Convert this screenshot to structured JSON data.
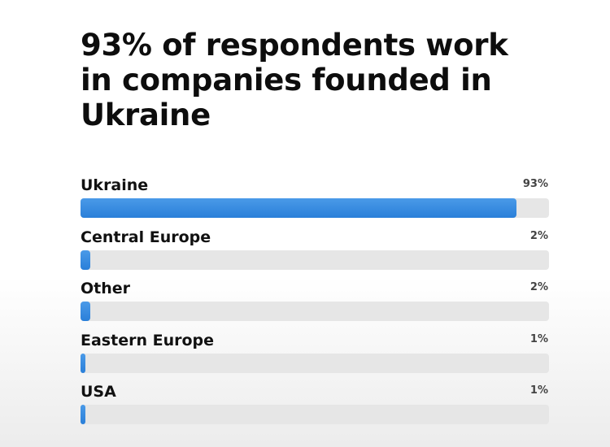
{
  "title": "93% of respondents work in companies founded in Ukraine",
  "colors": {
    "bar": "#2f86df",
    "track": "#e6e6e6",
    "text": "#111111"
  },
  "chart_data": {
    "type": "bar",
    "orientation": "horizontal",
    "title": "93% of respondents work in companies founded in Ukraine",
    "categories": [
      "Ukraine",
      "Central Europe",
      "Other",
      "Eastern Europe",
      "USA"
    ],
    "values": [
      93,
      2,
      2,
      1,
      1
    ],
    "value_labels": [
      "93%",
      "2%",
      "2%",
      "1%",
      "1%"
    ],
    "unit": "%",
    "xlim": [
      0,
      100
    ],
    "grid": false,
    "legend": "none"
  }
}
